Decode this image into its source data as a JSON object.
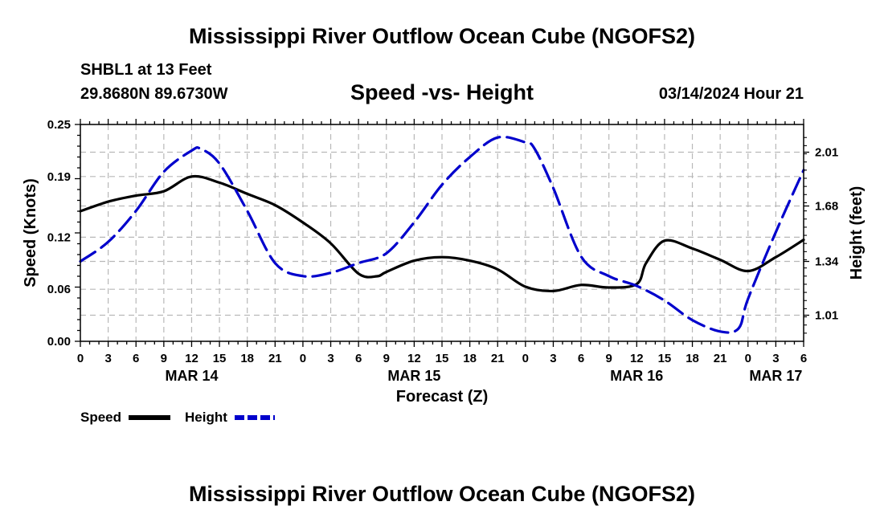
{
  "header": {
    "title": "Mississippi River Outflow Ocean Cube (NGOFS2)",
    "station": "SHBL1 at 13 Feet",
    "coords": "29.8680N  89.6730W",
    "subtitle": "Speed -vs- Height",
    "datetime": "03/14/2024 Hour 21"
  },
  "footer": {
    "title": "Mississippi River Outflow Ocean Cube (NGOFS2)"
  },
  "chart_data": {
    "type": "line",
    "title": "Speed -vs- Height",
    "xlabel": "Forecast (Z)",
    "ylabel": "Speed (Knots)",
    "y2label": "Height (feet)",
    "xlim": [
      0,
      78
    ],
    "ylim": [
      0,
      0.25
    ],
    "y2lim": [
      0.85,
      2.18
    ],
    "x_ticks": [
      0,
      3,
      6,
      9,
      12,
      15,
      18,
      21,
      24,
      27,
      30,
      33,
      36,
      39,
      42,
      45,
      48,
      51,
      54,
      57,
      60,
      63,
      66,
      69,
      72,
      75,
      78
    ],
    "x_tick_labels": [
      "0",
      "3",
      "6",
      "9",
      "12",
      "15",
      "18",
      "21",
      "0",
      "3",
      "6",
      "9",
      "12",
      "15",
      "18",
      "21",
      "0",
      "3",
      "6",
      "9",
      "12",
      "15",
      "18",
      "21",
      "0",
      "3",
      "6"
    ],
    "date_labels": [
      {
        "x": 12,
        "label": "MAR 14"
      },
      {
        "x": 36,
        "label": "MAR 15"
      },
      {
        "x": 60,
        "label": "MAR 16"
      },
      {
        "x": 75,
        "label": "MAR 17"
      }
    ],
    "y_ticks": [
      0.0,
      0.06,
      0.12,
      0.19,
      0.25
    ],
    "y_tick_labels": [
      "0.00",
      "0.06",
      "0.12",
      "0.19",
      "0.25"
    ],
    "y2_ticks": [
      1.01,
      1.34,
      1.68,
      2.01
    ],
    "y2_tick_labels": [
      "1.01",
      "1.34",
      "1.68",
      "2.01"
    ],
    "legend": [
      {
        "name": "Speed",
        "color": "#000000",
        "style": "solid"
      },
      {
        "name": "Height",
        "color": "#0000cc",
        "style": "dashed"
      }
    ],
    "series": [
      {
        "name": "Speed",
        "axis": "left",
        "color": "#000000",
        "x": [
          0,
          3,
          6,
          9,
          12,
          15,
          18,
          21,
          24,
          27,
          30,
          32,
          33,
          36,
          39,
          42,
          45,
          48,
          51,
          54,
          57,
          60,
          61,
          63,
          66,
          69,
          72,
          75,
          78
        ],
        "values": [
          0.15,
          0.161,
          0.168,
          0.173,
          0.19,
          0.183,
          0.17,
          0.157,
          0.137,
          0.113,
          0.078,
          0.075,
          0.08,
          0.093,
          0.097,
          0.093,
          0.083,
          0.063,
          0.058,
          0.065,
          0.062,
          0.066,
          0.09,
          0.116,
          0.107,
          0.094,
          0.081,
          0.097,
          0.117
        ]
      },
      {
        "name": "Height",
        "axis": "right",
        "color": "#0000cc",
        "x": [
          0,
          3,
          6,
          9,
          12,
          13,
          15,
          18,
          21,
          24,
          27,
          30,
          33,
          36,
          39,
          42,
          45,
          48,
          49,
          51,
          54,
          57,
          60,
          63,
          66,
          69,
          71,
          72,
          75,
          78
        ],
        "values": [
          1.34,
          1.46,
          1.65,
          1.89,
          2.02,
          2.03,
          1.94,
          1.65,
          1.33,
          1.25,
          1.27,
          1.33,
          1.39,
          1.58,
          1.81,
          1.98,
          2.1,
          2.07,
          2.03,
          1.79,
          1.37,
          1.25,
          1.19,
          1.1,
          0.98,
          0.91,
          0.93,
          1.11,
          1.52,
          1.9
        ]
      }
    ]
  }
}
